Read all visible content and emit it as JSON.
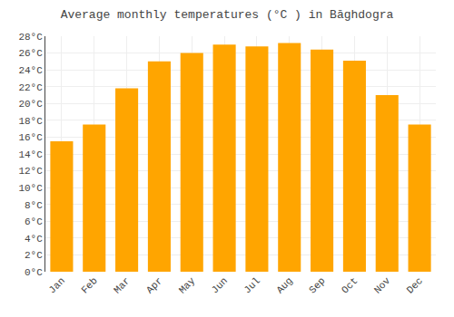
{
  "chart_data": {
    "type": "bar",
    "title": "Average monthly temperatures (°C ) in Bāghdogra",
    "categories": [
      "Jan",
      "Feb",
      "Mar",
      "Apr",
      "May",
      "Jun",
      "Jul",
      "Aug",
      "Sep",
      "Oct",
      "Nov",
      "Dec"
    ],
    "values": [
      15.5,
      17.5,
      21.8,
      25.0,
      26.0,
      27.0,
      26.8,
      27.2,
      26.4,
      25.1,
      21.0,
      17.5
    ],
    "color": "#FFA500",
    "ylim": [
      0,
      28
    ],
    "yticks": [
      {
        "value": 0,
        "label": "0°C"
      },
      {
        "value": 2,
        "label": "2°C"
      },
      {
        "value": 4,
        "label": "4°C"
      },
      {
        "value": 6,
        "label": "6°C"
      },
      {
        "value": 8,
        "label": "8°C"
      },
      {
        "value": 10,
        "label": "10°C"
      },
      {
        "value": 12,
        "label": "12°C"
      },
      {
        "value": 14,
        "label": "14°C"
      },
      {
        "value": 16,
        "label": "16°C"
      },
      {
        "value": 18,
        "label": "18°C"
      },
      {
        "value": 20,
        "label": "20°C"
      },
      {
        "value": 22,
        "label": "22°C"
      },
      {
        "value": 24,
        "label": "24°C"
      },
      {
        "value": 26,
        "label": "26°C"
      },
      {
        "value": 28,
        "label": "28°C"
      }
    ],
    "grid": true
  }
}
